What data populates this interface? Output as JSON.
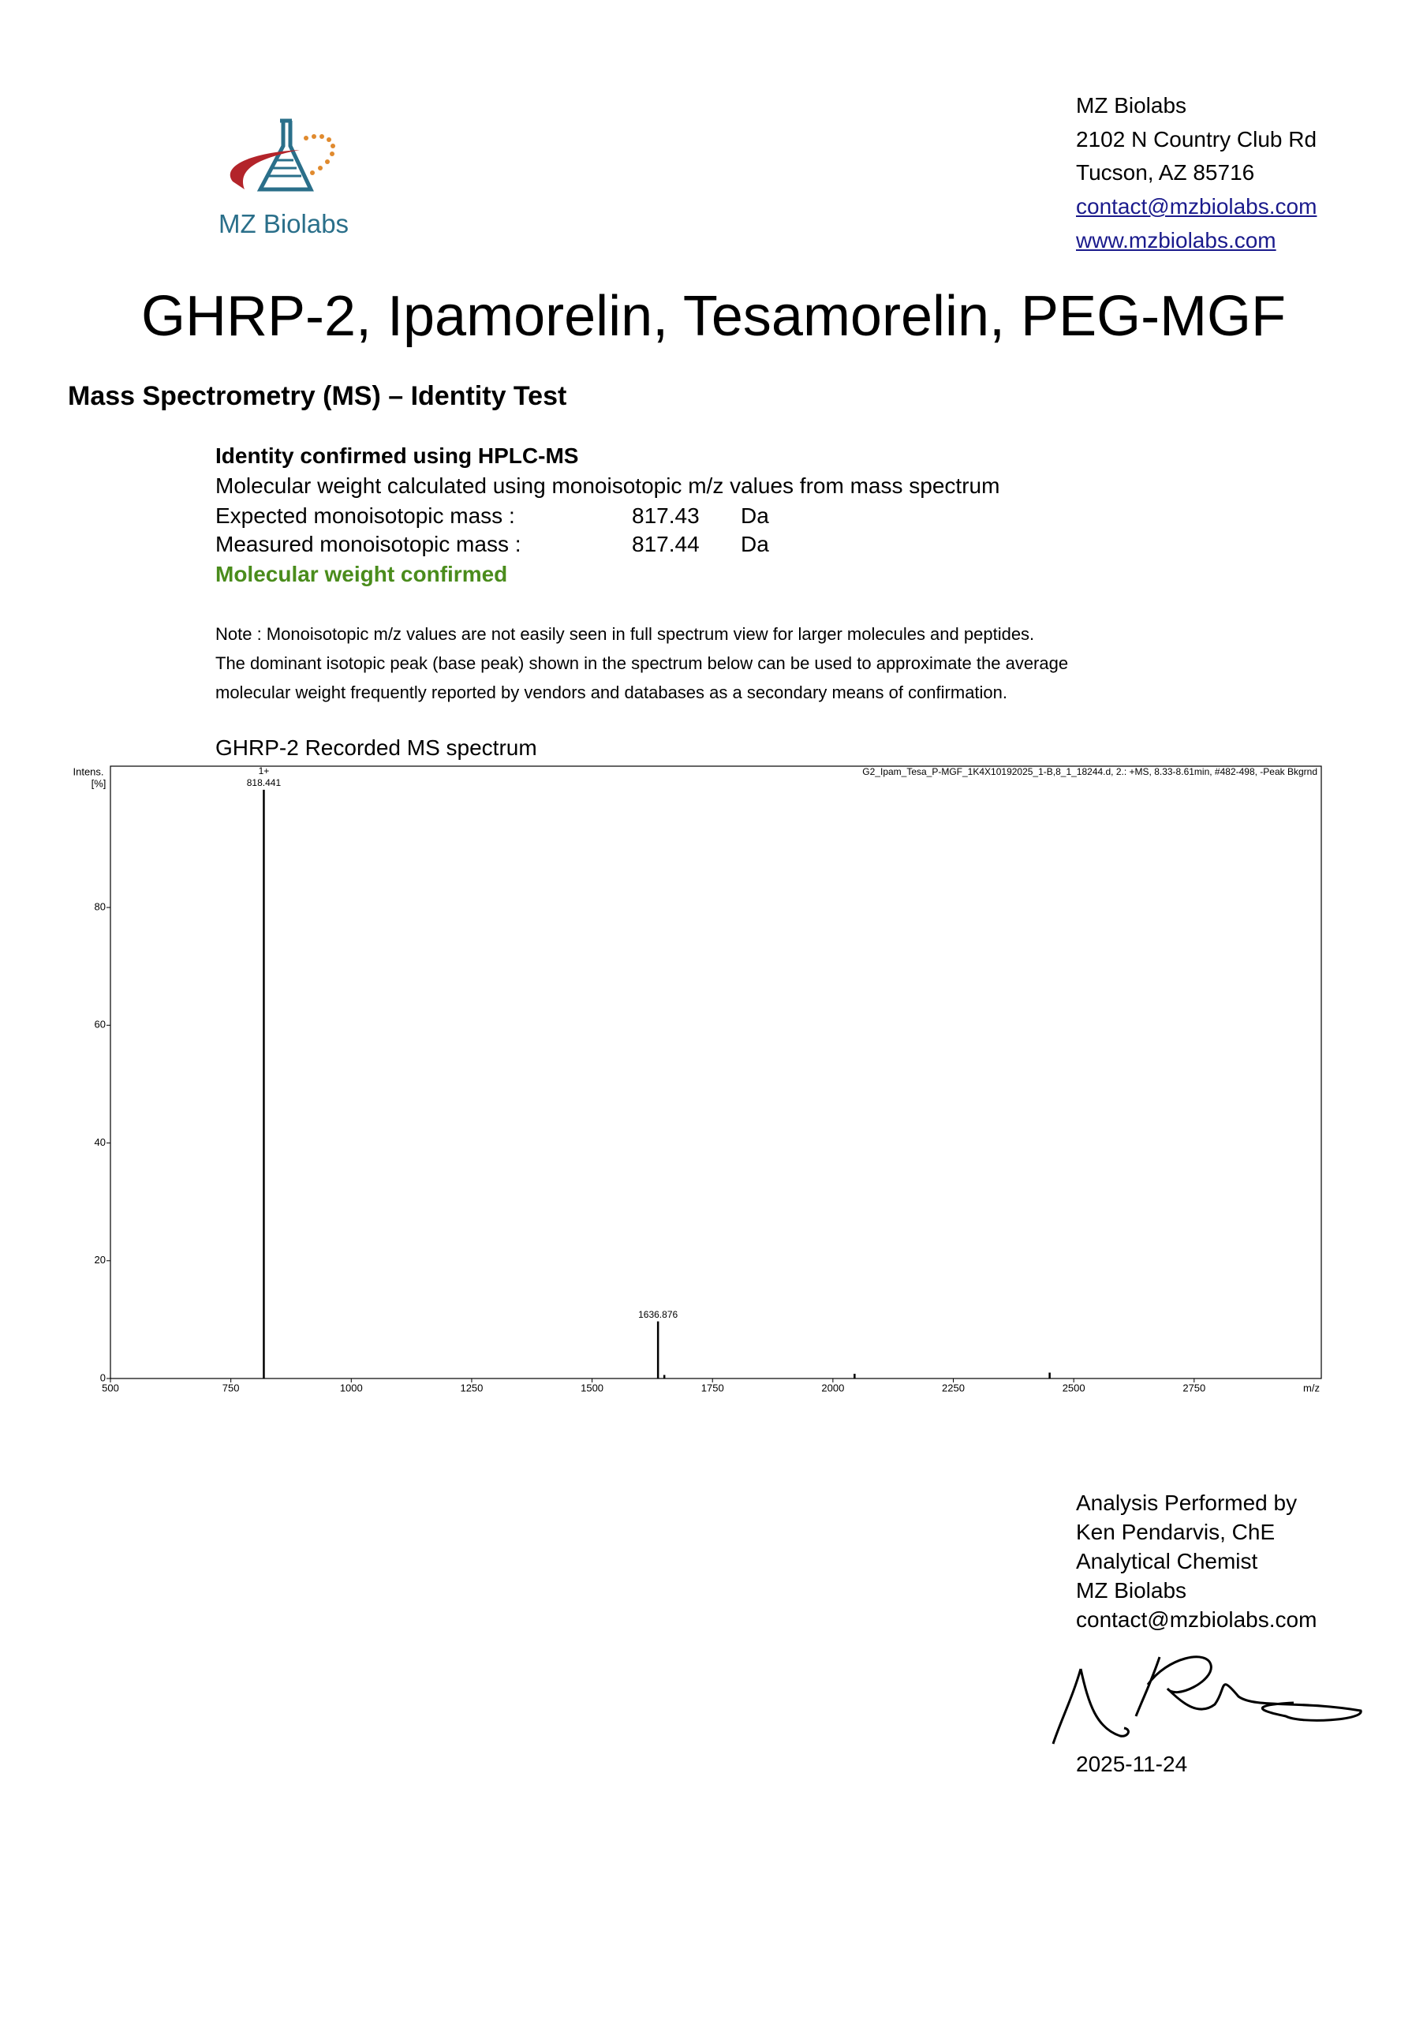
{
  "header": {
    "logo_text": "MZ Biolabs",
    "address": [
      "MZ Biolabs",
      "2102 N Country Club Rd",
      "Tucson, AZ 85716",
      "contact@mzbiolabs.com",
      "www.mzbiolabs.com"
    ]
  },
  "title": "GHRP-2, Ipamorelin, Tesamorelin, PEG-MGF",
  "section_heading": "Mass Spectrometry (MS) – Identity Test",
  "identity": {
    "heading": "Identity confirmed using HPLC-MS",
    "method": "Molecular weight calculated using monoisotopic m/z values from mass spectrum",
    "rows": [
      {
        "label": "Expected monoisotopic mass :",
        "value": 817.43,
        "unit": "Da"
      },
      {
        "label": "Measured monoisotopic mass :",
        "value": 817.44,
        "unit": "Da"
      }
    ],
    "result": "Molecular weight confirmed"
  },
  "note": [
    "Note : Monoisotopic m/z values are not easily seen in full spectrum view for larger molecules and peptides.",
    "The dominant isotopic peak (base peak) shown in the spectrum below can be used to approximate the average",
    "molecular weight frequently reported by vendors and databases as a secondary means of confirmation."
  ],
  "chart_data": {
    "type": "stick",
    "title": "GHRP-2 Recorded MS spectrum",
    "y_label": "Intens.",
    "y_unit": "[%]",
    "x_label": "m/z",
    "file_info": "G2_Ipam_Tesa_P-MGF_1K4X10192025_1-B,8_1_18244.d, 2.: +MS, 8.33-8.61min, #482-498, -Peak Bkgrnd",
    "x": [
      818.441,
      1636.876,
      1650,
      2045,
      2450
    ],
    "values": [
      100,
      9.7,
      0.6,
      0.8,
      1
    ],
    "peak_labels": [
      "818.441",
      "1636.876",
      null,
      null,
      null
    ],
    "charge_labels": [
      "1+",
      null,
      null,
      null,
      null
    ],
    "color": "#000000",
    "xlim": [
      500,
      3014
    ],
    "ylim": [
      0,
      104
    ],
    "xticks": [
      500,
      750,
      1000,
      1250,
      1500,
      1750,
      2000,
      2250,
      2500,
      2750
    ],
    "yticks": [
      0,
      20,
      40,
      60,
      80
    ]
  },
  "signature": {
    "lines": [
      "Analysis Performed by",
      "Ken Pendarvis, ChE",
      "Analytical Chemist",
      "MZ Biolabs",
      "contact@mzbiolabs.com"
    ],
    "date": "2025-11-24"
  }
}
